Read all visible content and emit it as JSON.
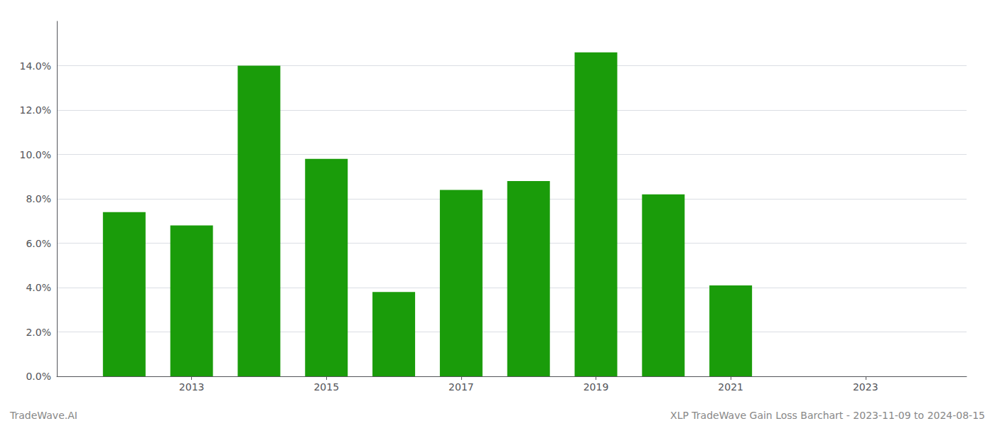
{
  "chart_data": {
    "type": "bar",
    "x": [
      2012,
      2013,
      2014,
      2015,
      2016,
      2017,
      2018,
      2019,
      2020,
      2021
    ],
    "values": [
      0.074,
      0.068,
      0.14,
      0.098,
      0.038,
      0.084,
      0.088,
      0.146,
      0.082,
      0.041
    ],
    "color": "#1a9c0a",
    "xlim": [
      2011.0,
      2024.5
    ],
    "xticks": [
      2013,
      2015,
      2017,
      2019,
      2021,
      2023
    ],
    "ylim": [
      0,
      0.16
    ],
    "yticks": [
      {
        "value": 0.0,
        "label": "0.0%"
      },
      {
        "value": 0.02,
        "label": "2.0%"
      },
      {
        "value": 0.04,
        "label": "4.0%"
      },
      {
        "value": 0.06,
        "label": "6.0%"
      },
      {
        "value": 0.08,
        "label": "8.0%"
      },
      {
        "value": 0.1,
        "label": "10.0%"
      },
      {
        "value": 0.12,
        "label": "12.0%"
      },
      {
        "value": 0.14,
        "label": "14.0%"
      }
    ],
    "grid": true,
    "annotations": [
      "TradeWave.AI",
      "XLP TradeWave Gain Loss Barchart - 2023-11-09 to 2024-08-15"
    ]
  }
}
